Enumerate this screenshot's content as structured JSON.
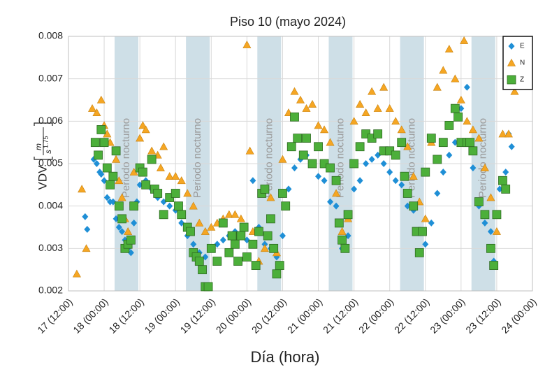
{
  "chart_data": {
    "type": "scatter",
    "title": "Piso 10 (mayo 2024)",
    "x_label": "Día (hora)",
    "y_label": "VDV",
    "y_unit_num": "m",
    "y_unit_den": "s",
    "y_unit_exp": "1.75",
    "night_label": "Periodo nocturno",
    "night_periods": [
      [
        15.5,
        23.5
      ],
      [
        39.5,
        47.5
      ],
      [
        63.5,
        71.5
      ],
      [
        87.5,
        95.5
      ],
      [
        111.5,
        119.5
      ],
      [
        135.5,
        143.5
      ]
    ],
    "night_color": "#c9dbe4",
    "xlim": [
      0,
      156
    ],
    "xticks": [
      {
        "value": 0,
        "label": "17 (12:00)"
      },
      {
        "value": 12,
        "label": "18 (00:00)"
      },
      {
        "value": 24,
        "label": "18 (12:00)"
      },
      {
        "value": 36,
        "label": "19 (00:00)"
      },
      {
        "value": 48,
        "label": "19 (12:00)"
      },
      {
        "value": 60,
        "label": "20 (00:00)"
      },
      {
        "value": 72,
        "label": "20 (12:00)"
      },
      {
        "value": 84,
        "label": "21 (00:00)"
      },
      {
        "value": 96,
        "label": "21 (12:00)"
      },
      {
        "value": 108,
        "label": "22 (00:00)"
      },
      {
        "value": 120,
        "label": "22 (12:00)"
      },
      {
        "value": 132,
        "label": "23 (00:00)"
      },
      {
        "value": 144,
        "label": "23 (12:00)"
      },
      {
        "value": 156,
        "label": "24 (00:00)"
      }
    ],
    "ylim": [
      0.002,
      0.008
    ],
    "yticks": [
      0.002,
      0.003,
      0.004,
      0.005,
      0.006,
      0.007,
      0.008
    ],
    "grid": true,
    "legend": "upper right",
    "series": [
      {
        "name": "E",
        "color": "#1f8fd6",
        "marker": "diamond",
        "x": [
          5.6,
          6.3,
          8.5,
          9.5,
          10.5,
          11,
          12,
          13,
          14,
          15,
          16,
          17,
          18,
          19,
          20,
          21,
          22,
          23,
          24,
          26,
          28,
          30,
          32,
          34,
          36,
          38,
          40,
          42,
          44,
          46,
          48,
          50,
          52,
          54,
          56,
          58,
          60,
          62,
          64,
          66,
          68,
          70,
          72,
          74,
          76,
          78,
          80,
          82,
          84,
          86,
          88,
          90,
          92,
          94,
          96,
          98,
          100,
          102,
          104,
          106,
          108,
          110,
          112,
          114,
          116,
          118,
          120,
          122,
          124,
          126,
          128,
          130,
          132,
          133,
          134,
          136,
          138,
          140,
          142,
          143,
          145,
          147,
          148,
          149
        ],
        "values": [
          0.00375,
          0.00345,
          0.0051,
          0.005,
          0.0048,
          0.00475,
          0.0046,
          0.0042,
          0.0041,
          0.0041,
          0.0037,
          0.0035,
          0.0034,
          0.0032,
          0.003,
          0.0029,
          0.0036,
          0.0041,
          0.0045,
          0.0046,
          0.0044,
          0.0042,
          0.0041,
          0.004,
          0.0039,
          0.0036,
          0.0033,
          0.0031,
          0.0029,
          0.0028,
          0.003,
          0.0031,
          0.0032,
          0.0033,
          0.0034,
          0.0033,
          0.0032,
          0.0046,
          0.0035,
          0.0031,
          0.003,
          0.0028,
          0.0033,
          0.0044,
          0.0049,
          0.0051,
          0.0052,
          0.005,
          0.0047,
          0.0046,
          0.0041,
          0.004,
          0.003,
          0.0033,
          0.0044,
          0.0046,
          0.005,
          0.0051,
          0.0052,
          0.005,
          0.0048,
          0.0046,
          0.0045,
          0.004,
          0.0039,
          0.0034,
          0.0031,
          0.0036,
          0.0043,
          0.0048,
          0.0052,
          0.0055,
          0.0063,
          0.0055,
          0.0068,
          0.0049,
          0.004,
          0.0036,
          0.0034,
          0.0027,
          0.0044,
          0.0048,
          0.0057,
          0.0054
        ]
      },
      {
        "name": "N",
        "color": "#f5a623",
        "marker": "triangle",
        "x": [
          2.8,
          4.5,
          6,
          8,
          9.5,
          11,
          12,
          13,
          14,
          16,
          17,
          18,
          19,
          20,
          22,
          24,
          25,
          26,
          28,
          30,
          31,
          32,
          34,
          36,
          38,
          40,
          42,
          44,
          46,
          48,
          50,
          52,
          54,
          56,
          58,
          60,
          61,
          62,
          64,
          66,
          68,
          70,
          72,
          74,
          76,
          78,
          80,
          82,
          84,
          86,
          88,
          90,
          92,
          94,
          96,
          98,
          100,
          102,
          104,
          106,
          108,
          110,
          112,
          114,
          116,
          118,
          120,
          122,
          124,
          126,
          128,
          130,
          132,
          133,
          134,
          136,
          138,
          140,
          142,
          144,
          146,
          148,
          150
        ],
        "values": [
          0.0024,
          0.0044,
          0.003,
          0.0063,
          0.0062,
          0.0065,
          0.0059,
          0.0057,
          0.0055,
          0.0051,
          0.0046,
          0.0042,
          0.0037,
          0.0034,
          0.0048,
          0.0056,
          0.0059,
          0.0058,
          0.0053,
          0.0052,
          0.0049,
          0.0054,
          0.0047,
          0.0047,
          0.0046,
          0.0043,
          0.004,
          0.0036,
          0.0034,
          0.0035,
          0.0036,
          0.0037,
          0.0038,
          0.0038,
          0.0037,
          0.0078,
          0.0053,
          0.0034,
          0.0027,
          0.003,
          0.0042,
          0.0029,
          0.0051,
          0.0062,
          0.0067,
          0.0065,
          0.0063,
          0.0064,
          0.0059,
          0.0058,
          0.0055,
          0.0043,
          0.0034,
          0.0037,
          0.006,
          0.0064,
          0.0062,
          0.0067,
          0.0063,
          0.0068,
          0.0063,
          0.006,
          0.0058,
          0.0054,
          0.0047,
          0.0041,
          0.0037,
          0.0055,
          0.0068,
          0.0072,
          0.0077,
          0.007,
          0.0065,
          0.0079,
          0.006,
          0.0058,
          0.0056,
          0.0049,
          0.0042,
          0.0034,
          0.0057,
          0.0057,
          0.0067
        ]
      },
      {
        "name": "Z",
        "color": "#4caf3a",
        "marker": "square",
        "x": [
          9,
          10,
          11,
          12,
          13,
          14,
          15,
          16,
          17,
          18,
          19,
          20,
          21,
          22,
          24,
          25,
          26,
          28,
          29,
          30,
          32,
          34,
          36,
          37,
          38,
          40,
          41,
          42,
          43,
          44,
          45,
          46,
          47,
          48,
          50,
          52,
          54,
          55,
          56,
          57,
          58,
          59,
          60,
          62,
          63,
          64,
          65,
          66,
          67,
          68,
          69,
          70,
          71,
          72,
          73,
          75,
          76,
          77,
          79,
          80,
          82,
          84,
          86,
          88,
          90,
          91,
          92,
          93,
          94,
          96,
          98,
          100,
          102,
          104,
          106,
          108,
          110,
          112,
          113,
          114,
          116,
          117,
          118,
          119,
          120,
          122,
          124,
          126,
          128,
          130,
          131,
          132,
          134,
          135,
          136,
          138,
          140,
          142,
          143,
          144,
          146,
          147
        ],
        "values": [
          0.0055,
          0.0052,
          0.0058,
          0.0055,
          0.0049,
          0.0045,
          0.0047,
          0.0053,
          0.004,
          0.0037,
          0.003,
          0.0031,
          0.0032,
          0.004,
          0.0049,
          0.0048,
          0.0045,
          0.0051,
          0.0044,
          0.0043,
          0.0038,
          0.0042,
          0.0043,
          0.004,
          0.0038,
          0.0035,
          0.0034,
          0.0029,
          0.0028,
          0.0027,
          0.0025,
          0.0021,
          0.0021,
          0.003,
          0.0027,
          0.0036,
          0.0029,
          0.0033,
          0.0031,
          0.0027,
          0.0033,
          0.0035,
          0.0028,
          0.0031,
          0.0026,
          0.0034,
          0.0043,
          0.0044,
          0.0033,
          0.0037,
          0.003,
          0.0024,
          0.0026,
          0.0043,
          0.004,
          0.0054,
          0.0061,
          0.0056,
          0.0052,
          0.0056,
          0.005,
          0.0054,
          0.005,
          0.0049,
          0.0046,
          0.0036,
          0.0032,
          0.003,
          0.0038,
          0.005,
          0.0054,
          0.0057,
          0.0056,
          0.0057,
          0.0053,
          0.0053,
          0.0052,
          0.0055,
          0.0047,
          0.0043,
          0.004,
          0.0034,
          0.0029,
          0.0034,
          0.0048,
          0.0056,
          0.0051,
          0.0055,
          0.0059,
          0.0063,
          0.0061,
          0.0055,
          0.0055,
          0.0055,
          0.0053,
          0.0041,
          0.0038,
          0.003,
          0.0026,
          0.0038,
          0.0046,
          0.0044
        ]
      }
    ]
  }
}
